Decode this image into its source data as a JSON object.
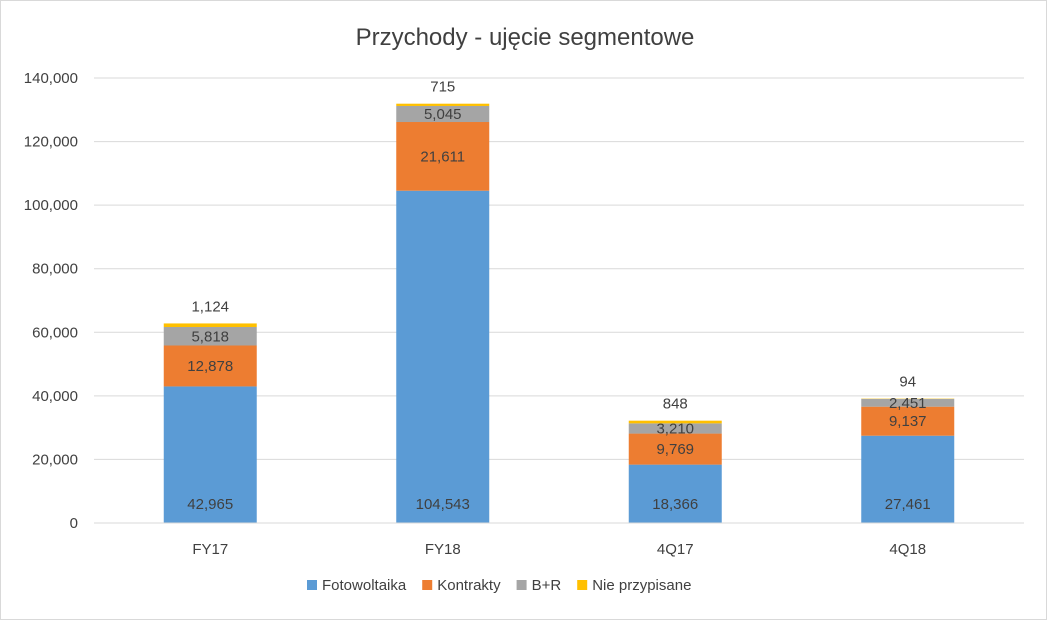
{
  "chart_data": {
    "type": "bar",
    "stacked": true,
    "title": "Przychody - ujęcie segmentowe",
    "xlabel": "",
    "ylabel": "",
    "categories": [
      "FY17",
      "FY18",
      "4Q17",
      "4Q18"
    ],
    "ylim": [
      0,
      140000
    ],
    "yticks": [
      0,
      20000,
      40000,
      60000,
      80000,
      100000,
      120000,
      140000
    ],
    "ytick_labels": [
      "0",
      "20,000",
      "40,000",
      "60,000",
      "80,000",
      "100,000",
      "120,000",
      "140,000"
    ],
    "grid": true,
    "legend_position": "bottom",
    "series": [
      {
        "name": "Fotowoltaika",
        "color": "#5b9bd5",
        "values": [
          42965,
          104543,
          18366,
          27461
        ],
        "labels": [
          "42,965",
          "104,543",
          "18,366",
          "27,461"
        ]
      },
      {
        "name": "Kontrakty",
        "color": "#ed7d31",
        "values": [
          12878,
          21611,
          9769,
          9137
        ],
        "labels": [
          "12,878",
          "21,611",
          "9,769",
          "9,137"
        ]
      },
      {
        "name": "B+R",
        "color": "#a5a5a5",
        "values": [
          5818,
          5045,
          3210,
          2451
        ],
        "labels": [
          "5,818",
          "5,045",
          "3,210",
          "2,451"
        ]
      },
      {
        "name": "Nie przypisane",
        "color": "#ffc000",
        "values": [
          1124,
          715,
          848,
          94
        ],
        "labels": [
          "1,124",
          "715",
          "848",
          "94"
        ]
      }
    ]
  }
}
